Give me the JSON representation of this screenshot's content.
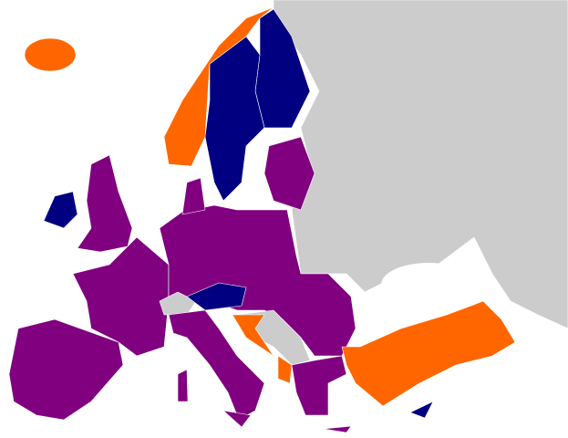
{
  "map": {
    "colors": {
      "sea": "#ffffff",
      "other": "#cccccc",
      "purple": "#800080",
      "navy": "#000080",
      "orange": "#ff6600"
    },
    "regions": [
      {
        "id": "eastern-land",
        "category": "other"
      },
      {
        "id": "finland",
        "category": "navy"
      },
      {
        "id": "sweden",
        "category": "navy"
      },
      {
        "id": "norway",
        "category": "orange"
      },
      {
        "id": "iceland",
        "category": "orange"
      },
      {
        "id": "ireland",
        "category": "navy"
      },
      {
        "id": "united-kingdom",
        "category": "purple"
      },
      {
        "id": "baltics",
        "category": "purple"
      },
      {
        "id": "iberia",
        "category": "purple"
      },
      {
        "id": "france",
        "category": "purple"
      },
      {
        "id": "central-europe",
        "category": "purple"
      },
      {
        "id": "denmark",
        "category": "purple"
      },
      {
        "id": "switzerland",
        "category": "other"
      },
      {
        "id": "austria",
        "category": "navy"
      },
      {
        "id": "italy",
        "category": "purple"
      },
      {
        "id": "sardinia",
        "category": "purple"
      },
      {
        "id": "sicily",
        "category": "purple"
      },
      {
        "id": "western-balkans",
        "category": "other"
      },
      {
        "id": "croatia",
        "category": "orange"
      },
      {
        "id": "montenegro",
        "category": "orange"
      },
      {
        "id": "greece-bulgaria",
        "category": "purple"
      },
      {
        "id": "turkey",
        "category": "orange"
      },
      {
        "id": "cyprus",
        "category": "navy"
      },
      {
        "id": "crete",
        "category": "purple"
      }
    ]
  }
}
